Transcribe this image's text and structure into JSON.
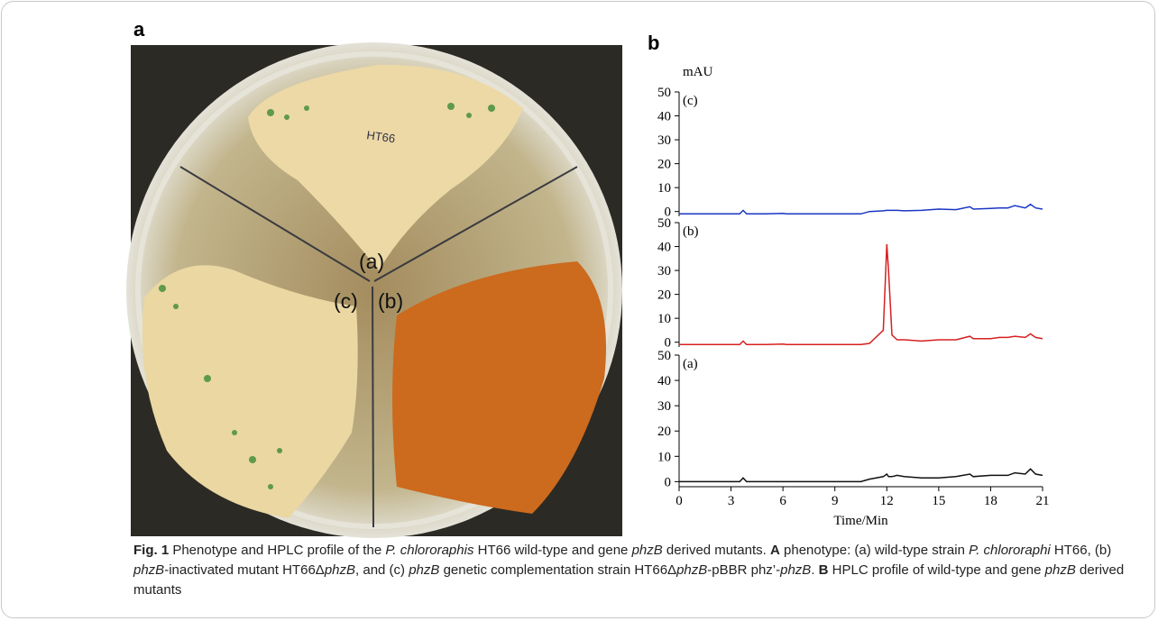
{
  "panel_a": {
    "label": "a",
    "handwriting": "HT66",
    "plate_labels": [
      "(a)",
      "(c)",
      "(b)"
    ]
  },
  "panel_b": {
    "label": "b"
  },
  "chart_data": [
    {
      "type": "line",
      "ylabel": "mAU",
      "annotation": "(c)",
      "x": [
        0,
        1,
        2,
        3,
        3.5,
        3.7,
        3.9,
        5,
        6,
        6.2,
        8,
        10,
        10.5,
        11,
        11.8,
        12,
        12.1,
        12.3,
        12.6,
        13,
        14,
        15,
        16,
        16.8,
        17,
        18,
        18.5,
        19,
        19.4,
        20,
        20.3,
        20.6,
        21
      ],
      "series": [
        {
          "color": "#1a36c4",
          "values": [
            -1,
            -1,
            -1,
            -1,
            -1,
            0.5,
            -1,
            -1,
            -0.8,
            -1,
            -1,
            -1,
            -1,
            0,
            0.3,
            0.5,
            0.5,
            0.5,
            0.5,
            0.3,
            0.5,
            1,
            0.8,
            2,
            1,
            1.3,
            1.5,
            1.5,
            2.5,
            1.5,
            3,
            1.5,
            1
          ]
        }
      ],
      "xlim": [
        0,
        21
      ],
      "ylim": [
        -2,
        50
      ],
      "yticks": [
        0,
        10,
        20,
        30,
        40,
        50
      ]
    },
    {
      "type": "line",
      "annotation": "(b)",
      "x": [
        0,
        1,
        2,
        3,
        3.5,
        3.7,
        3.9,
        5,
        6,
        6.2,
        8,
        10,
        10.5,
        11,
        11.8,
        12,
        12.1,
        12.3,
        12.6,
        13,
        14,
        15,
        16,
        16.8,
        17,
        18,
        18.5,
        19,
        19.4,
        20,
        20.3,
        20.6,
        21
      ],
      "series": [
        {
          "color": "#d62020",
          "values": [
            -1,
            -1,
            -1,
            -1,
            -1,
            0.5,
            -1,
            -1,
            -0.8,
            -1,
            -1,
            -1,
            -1,
            -0.5,
            5,
            41,
            30,
            3,
            1,
            1,
            0.5,
            1,
            1,
            2.5,
            1.5,
            1.5,
            2,
            2,
            2.5,
            2,
            3.5,
            2,
            1.5
          ]
        }
      ],
      "xlim": [
        0,
        21
      ],
      "ylim": [
        -2,
        50
      ],
      "yticks": [
        0,
        10,
        20,
        30,
        40,
        50
      ]
    },
    {
      "type": "line",
      "annotation": "(a)",
      "xlabel": "Time/Min",
      "x": [
        0,
        1,
        2,
        3,
        3.5,
        3.7,
        3.9,
        5,
        6,
        6.2,
        8,
        10,
        10.5,
        11,
        11.8,
        12,
        12.1,
        12.3,
        12.6,
        13,
        14,
        15,
        16,
        16.8,
        17,
        18,
        18.5,
        19,
        19.4,
        20,
        20.3,
        20.6,
        21
      ],
      "series": [
        {
          "color": "#111111",
          "values": [
            0,
            0,
            0,
            0,
            0,
            1.5,
            0,
            0,
            0,
            0,
            0,
            0,
            0,
            1,
            2,
            3,
            2,
            2,
            2.5,
            2,
            1.5,
            1.5,
            2,
            3,
            2,
            2.5,
            2.5,
            2.5,
            3.5,
            3,
            5,
            3,
            2.5
          ]
        }
      ],
      "xlim": [
        0,
        21
      ],
      "ylim": [
        -2,
        50
      ],
      "yticks": [
        0,
        10,
        20,
        30,
        40,
        50
      ],
      "xticks": [
        0,
        3,
        6,
        9,
        12,
        15,
        18,
        21
      ]
    }
  ],
  "caption": {
    "runs": [
      {
        "text": "Fig. 1",
        "style": "b"
      },
      {
        "text": "  Phenotype and HPLC profile of the "
      },
      {
        "text": "P. chlororaphis",
        "style": "i"
      },
      {
        "text": " HT66 wild-type and gene "
      },
      {
        "text": "phzB",
        "style": "i"
      },
      {
        "text": " derived mutants. "
      },
      {
        "text": "A",
        "style": "b"
      },
      {
        "text": " phenotype: (a) wild-type strain "
      },
      {
        "text": "P. chlororaphi",
        "style": "i"
      },
      {
        "text": " HT66, (b) "
      },
      {
        "text": "phzB",
        "style": "i"
      },
      {
        "text": "-inactivated mutant HT66Δ"
      },
      {
        "text": "phzB",
        "style": "i"
      },
      {
        "text": ", and (c) "
      },
      {
        "text": "phzB",
        "style": "i"
      },
      {
        "text": " genetic complementation strain HT66Δ"
      },
      {
        "text": "phzB",
        "style": "i"
      },
      {
        "text": "-pBBR phz’-"
      },
      {
        "text": "phzB",
        "style": "i"
      },
      {
        "text": ". "
      },
      {
        "text": "B",
        "style": "b"
      },
      {
        "text": " HPLC profile of wild-type and gene "
      },
      {
        "text": "phzB",
        "style": "i"
      },
      {
        "text": " derived mutants"
      }
    ]
  }
}
